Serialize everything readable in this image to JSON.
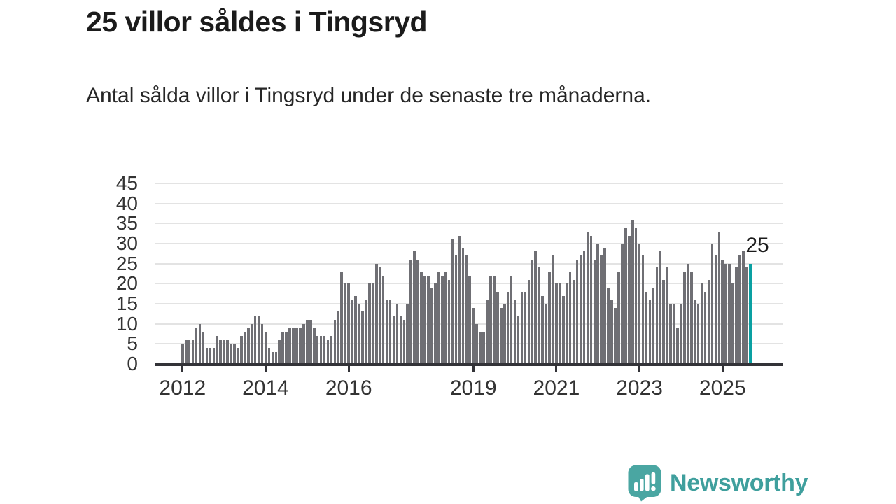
{
  "header": {
    "title": "25 villor såldes i Tingsryd",
    "subtitle": "Antal sålda villor i Tingsryd under de senaste tre månaderna."
  },
  "chart_data": {
    "type": "bar",
    "title": "25 villor såldes i Tingsryd",
    "subtitle": "Antal sålda villor i Tingsryd under de senaste tre månaderna.",
    "x_start": "2012-01",
    "x_end": "2025-09",
    "frequency": "monthly",
    "values": [
      5,
      6,
      6,
      6,
      9,
      10,
      8,
      4,
      4,
      4,
      7,
      6,
      6,
      6,
      5,
      5,
      4,
      7,
      8,
      9,
      10,
      12,
      12,
      10,
      8,
      4,
      3,
      3,
      6,
      8,
      8,
      9,
      9,
      9,
      9,
      10,
      11,
      11,
      9,
      7,
      7,
      7,
      6,
      7,
      11,
      13,
      23,
      20,
      20,
      16,
      17,
      15,
      13,
      16,
      20,
      20,
      25,
      24,
      22,
      16,
      16,
      12,
      15,
      12,
      11,
      15,
      26,
      28,
      26,
      23,
      22,
      22,
      19,
      20,
      23,
      22,
      23,
      21,
      31,
      27,
      32,
      29,
      27,
      22,
      14,
      10,
      8,
      8,
      16,
      22,
      22,
      18,
      14,
      15,
      18,
      22,
      16,
      12,
      18,
      18,
      21,
      26,
      28,
      24,
      17,
      15,
      23,
      27,
      20,
      20,
      17,
      20,
      23,
      21,
      26,
      27,
      28,
      33,
      32,
      26,
      30,
      27,
      29,
      19,
      16,
      14,
      23,
      30,
      34,
      32,
      36,
      34,
      30,
      27,
      18,
      16,
      19,
      24,
      28,
      21,
      24,
      15,
      15,
      9,
      15,
      23,
      25,
      23,
      16,
      15,
      20,
      18,
      21,
      30,
      27,
      33,
      26,
      25,
      25,
      20,
      24,
      27,
      28,
      24,
      25
    ],
    "highlight_index": 164,
    "highlight_value": 25,
    "highlight_label": "25",
    "ylim": [
      0,
      45
    ],
    "yticks": [
      0,
      5,
      10,
      15,
      20,
      25,
      30,
      35,
      40,
      45
    ],
    "xticks": [
      2012,
      2014,
      2016,
      2019,
      2021,
      2023,
      2025
    ],
    "grid": true,
    "legend": false,
    "colors": {
      "bar": "#6f6f74",
      "highlight": "#0aa0a2",
      "grid": "#e3e3e3",
      "axis": "#333338",
      "tick_text": "#333333"
    }
  },
  "footer": {
    "brand": "Newsworthy",
    "brand_color": "#3f9f9d",
    "logo_color": "#4aa6a2"
  }
}
